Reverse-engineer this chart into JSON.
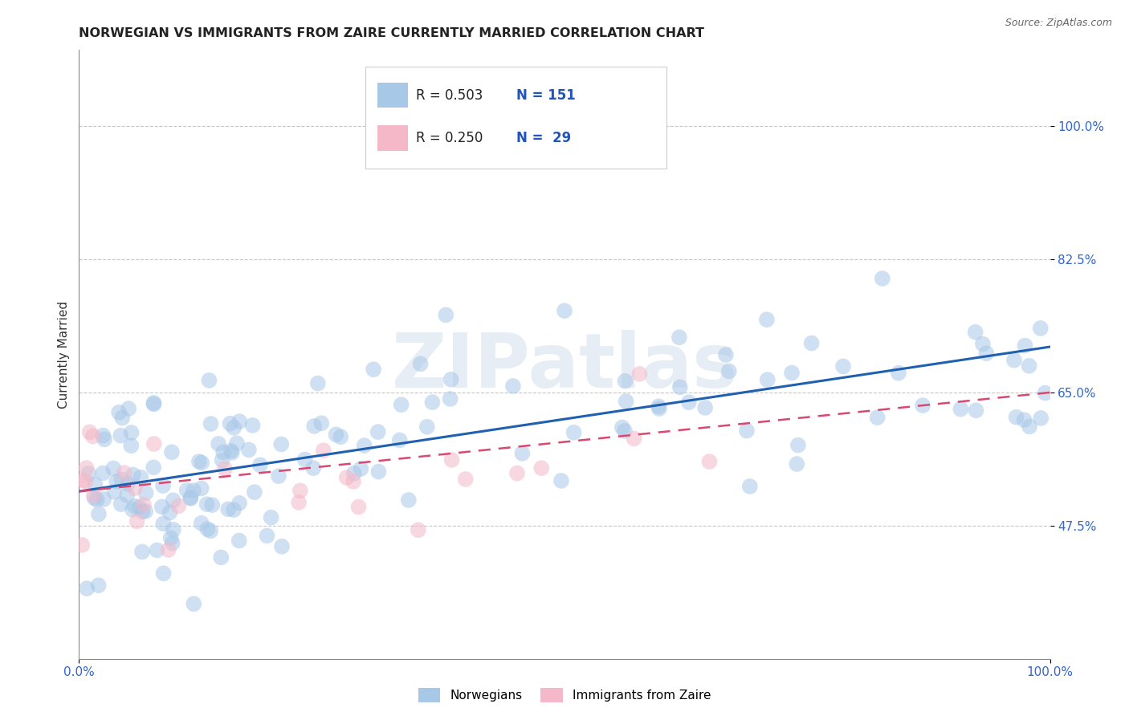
{
  "title": "NORWEGIAN VS IMMIGRANTS FROM ZAIRE CURRENTLY MARRIED CORRELATION CHART",
  "source": "Source: ZipAtlas.com",
  "ylabel": "Currently Married",
  "xlim": [
    0.0,
    1.0
  ],
  "ylim": [
    0.3,
    1.1
  ],
  "xtick_positions": [
    0.0,
    1.0
  ],
  "xtick_labels": [
    "0.0%",
    "100.0%"
  ],
  "ytick_vals": [
    0.475,
    0.65,
    0.825,
    1.0
  ],
  "ytick_labels": [
    "47.5%",
    "65.0%",
    "82.5%",
    "100.0%"
  ],
  "norwegian_color": "#a8c8e8",
  "zaire_color": "#f4b8c8",
  "norwegian_line_color": "#2060b0",
  "zaire_line_color": "#d84870",
  "legend_line1": "R = 0.503   N = 151",
  "legend_line2": "R = 0.250   N =  29",
  "legend_label_norwegian": "Norwegians",
  "legend_label_zaire": "Immigrants from Zaire",
  "watermark_text": "ZIPatlas",
  "background_color": "#ffffff",
  "title_fontsize": 11.5,
  "tick_fontsize": 11,
  "marker_size": 200,
  "alpha_scatter": 0.55,
  "nor_line_start_y": 0.52,
  "nor_line_end_y": 0.71,
  "zai_line_start_y": 0.52,
  "zai_line_end_y": 0.65
}
